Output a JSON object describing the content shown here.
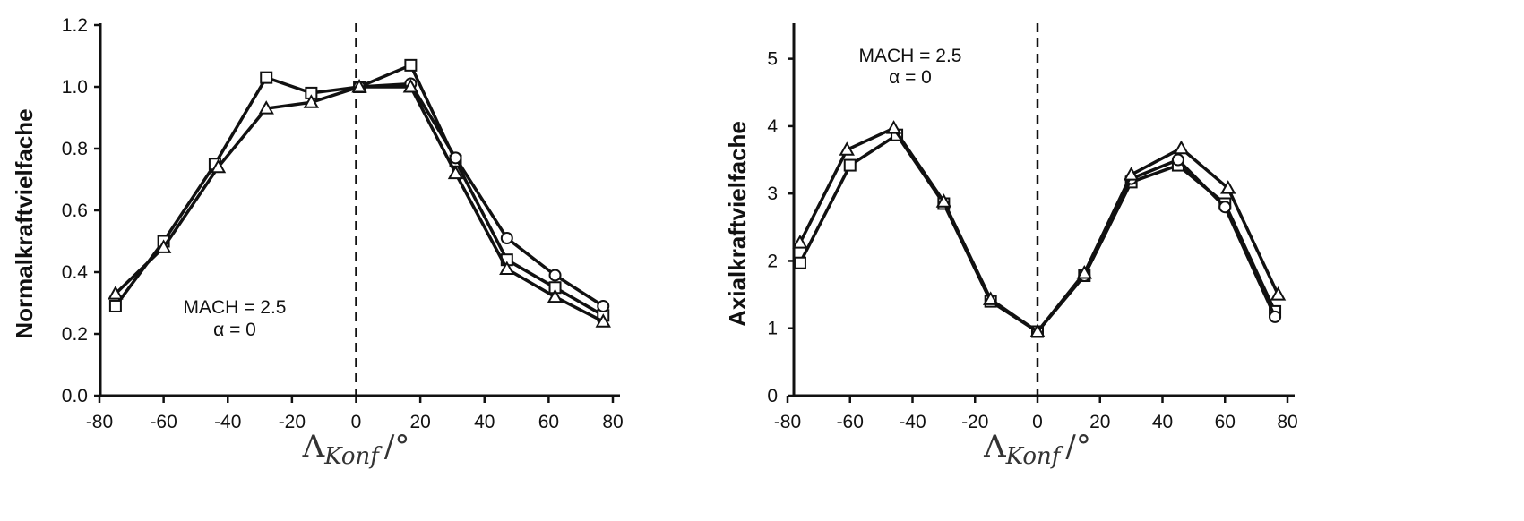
{
  "chart_data": [
    {
      "type": "line",
      "ylabel": "Normalkraftvielfache",
      "xlabel": {
        "main": "Λ",
        "sub": "Konf",
        "suffix": "/°"
      },
      "xlim": [
        -80,
        80
      ],
      "ylim": [
        0,
        1.2
      ],
      "xticks": [
        "-80",
        "-60",
        "-40",
        "-20",
        "0",
        "20",
        "40",
        "60",
        "80"
      ],
      "yticks": [
        "0.0",
        "0.2",
        "0.4",
        "0.6",
        "0.8",
        "1.0",
        "1.2"
      ],
      "reference_line_x": 0,
      "annotation": [
        "MACH = 2.5",
        "α = 0"
      ],
      "series": [
        {
          "marker": "square",
          "x": [
            -75,
            -60,
            -44,
            -28,
            -14,
            1,
            17,
            31,
            47,
            62,
            77
          ],
          "y": [
            0.29,
            0.5,
            0.75,
            1.03,
            0.98,
            1.0,
            1.07,
            0.76,
            0.44,
            0.35,
            0.26
          ]
        },
        {
          "marker": "circle",
          "x": [
            1,
            17,
            31,
            47,
            62,
            77
          ],
          "y": [
            1.0,
            1.01,
            0.77,
            0.51,
            0.39,
            0.29
          ]
        },
        {
          "marker": "triangle",
          "x": [
            -75,
            -60,
            -43,
            -28,
            -14,
            1,
            17,
            31,
            47,
            62,
            77
          ],
          "y": [
            0.33,
            0.48,
            0.74,
            0.93,
            0.95,
            1.0,
            1.0,
            0.72,
            0.41,
            0.32,
            0.24
          ]
        }
      ]
    },
    {
      "type": "line",
      "ylabel": "Axialkraftvielfache",
      "xlabel": {
        "main": "Λ",
        "sub": "Konf",
        "suffix": "/°"
      },
      "xlim": [
        -80,
        80
      ],
      "ylim": [
        0,
        5.5
      ],
      "xticks": [
        "-80",
        "-60",
        "-40",
        "-20",
        "0",
        "20",
        "40",
        "60",
        "80"
      ],
      "yticks": [
        "0",
        "1",
        "2",
        "3",
        "4",
        "5"
      ],
      "reference_line_x": 0,
      "annotation": [
        "MACH = 2.5",
        "α = 0"
      ],
      "series": [
        {
          "marker": "square",
          "x": [
            -76,
            -60,
            -45,
            -30,
            -15,
            0,
            15,
            30,
            45,
            60,
            76
          ],
          "y": [
            1.97,
            3.42,
            3.87,
            2.85,
            1.4,
            0.95,
            1.78,
            3.17,
            3.42,
            2.85,
            1.25
          ]
        },
        {
          "marker": "circle",
          "x": [
            15,
            30,
            45,
            60,
            76
          ],
          "y": [
            1.78,
            3.22,
            3.5,
            2.8,
            1.17
          ]
        },
        {
          "marker": "triangle",
          "x": [
            -76,
            -61,
            -46,
            -30,
            -15,
            0,
            15,
            30,
            46,
            61,
            77
          ],
          "y": [
            2.27,
            3.65,
            3.97,
            2.88,
            1.43,
            0.95,
            1.82,
            3.28,
            3.67,
            3.08,
            1.5
          ]
        }
      ]
    }
  ]
}
